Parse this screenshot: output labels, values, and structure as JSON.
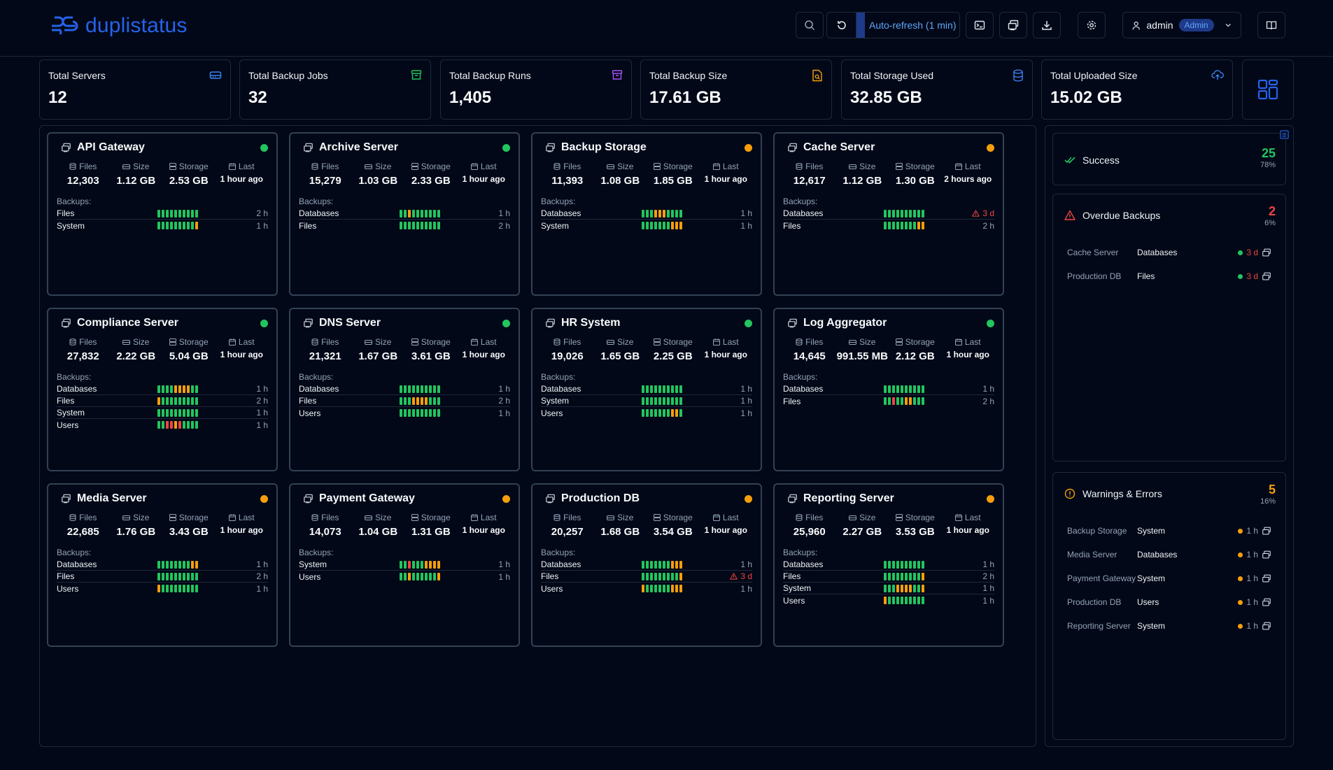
{
  "app": {
    "title": "duplistatus"
  },
  "header": {
    "auto_refresh_label": "Auto-refresh (1 min)",
    "user_name": "admin",
    "user_role": "Admin"
  },
  "stats": [
    {
      "label": "Total Servers",
      "value": "12",
      "icon": "server-icon",
      "color": "#3b82f6"
    },
    {
      "label": "Total Backup Jobs",
      "value": "32",
      "icon": "archive-icon",
      "color": "#22c55e"
    },
    {
      "label": "Total Backup Runs",
      "value": "1,405",
      "icon": "archive-icon",
      "color": "#a855f7"
    },
    {
      "label": "Total Backup Size",
      "value": "17.61 GB",
      "icon": "file-search-icon",
      "color": "#f59e0b"
    },
    {
      "label": "Total Storage Used",
      "value": "32.85 GB",
      "icon": "database-icon",
      "color": "#3b82f6"
    },
    {
      "label": "Total Uploaded Size",
      "value": "15.02 GB",
      "icon": "cloud-upload-icon",
      "color": "#3b82f6"
    }
  ],
  "labels": {
    "files": "Files",
    "size": "Size",
    "storage": "Storage",
    "last": "Last",
    "backups": "Backups:"
  },
  "colors": {
    "green": "#22c55e",
    "yellow": "#f59e0b",
    "red": "#ef4444",
    "accent": "#2563eb"
  },
  "servers": [
    {
      "name": "API Gateway",
      "status": "green",
      "files": "12,303",
      "size": "1.12 GB",
      "storage": "2.53 GB",
      "last": "1 hour ago",
      "backups": [
        {
          "name": "Files",
          "bars": "gggggggggg",
          "age": "2 h",
          "alert": false
        },
        {
          "name": "System",
          "bars": "gggggggggy",
          "age": "1 h",
          "alert": false
        }
      ]
    },
    {
      "name": "Archive Server",
      "status": "green",
      "files": "15,279",
      "size": "1.03 GB",
      "storage": "2.33 GB",
      "last": "1 hour ago",
      "backups": [
        {
          "name": "Databases",
          "bars": "ggyggggggg",
          "age": "1 h",
          "alert": false
        },
        {
          "name": "Files",
          "bars": "gggggggggg",
          "age": "2 h",
          "alert": false
        }
      ]
    },
    {
      "name": "Backup Storage",
      "status": "yellow",
      "files": "11,393",
      "size": "1.08 GB",
      "storage": "1.85 GB",
      "last": "1 hour ago",
      "backups": [
        {
          "name": "Databases",
          "bars": "gggyyygggg",
          "age": "1 h",
          "alert": false
        },
        {
          "name": "System",
          "bars": "gggggggyyy",
          "age": "1 h",
          "alert": false
        }
      ]
    },
    {
      "name": "Cache Server",
      "status": "yellow",
      "files": "12,617",
      "size": "1.12 GB",
      "storage": "1.30 GB",
      "last": "2 hours ago",
      "backups": [
        {
          "name": "Databases",
          "bars": "gggggggggg",
          "age": "3 d",
          "alert": true
        },
        {
          "name": "Files",
          "bars": "ggggggggyy",
          "age": "2 h",
          "alert": false
        }
      ]
    },
    {
      "name": "Compliance Server",
      "status": "green",
      "files": "27,832",
      "size": "2.22 GB",
      "storage": "5.04 GB",
      "last": "1 hour ago",
      "backups": [
        {
          "name": "Databases",
          "bars": "ggggyyyygg",
          "age": "1 h",
          "alert": false
        },
        {
          "name": "Files",
          "bars": "yggggggggg",
          "age": "2 h",
          "alert": false
        },
        {
          "name": "System",
          "bars": "gggggggggg",
          "age": "1 h",
          "alert": false
        },
        {
          "name": "Users",
          "bars": "ggrryrgggg",
          "age": "1 h",
          "alert": false
        }
      ]
    },
    {
      "name": "DNS Server",
      "status": "green",
      "files": "21,321",
      "size": "1.67 GB",
      "storage": "3.61 GB",
      "last": "1 hour ago",
      "backups": [
        {
          "name": "Databases",
          "bars": "gggggggggg",
          "age": "1 h",
          "alert": false
        },
        {
          "name": "Files",
          "bars": "gggyyyyggg",
          "age": "2 h",
          "alert": false
        },
        {
          "name": "Users",
          "bars": "gggggggggg",
          "age": "1 h",
          "alert": false
        }
      ]
    },
    {
      "name": "HR System",
      "status": "green",
      "files": "19,026",
      "size": "1.65 GB",
      "storage": "2.25 GB",
      "last": "1 hour ago",
      "backups": [
        {
          "name": "Databases",
          "bars": "gggggggggg",
          "age": "1 h",
          "alert": false
        },
        {
          "name": "System",
          "bars": "gggggggggg",
          "age": "1 h",
          "alert": false
        },
        {
          "name": "Users",
          "bars": "gggggggyyg",
          "age": "1 h",
          "alert": false
        }
      ]
    },
    {
      "name": "Log Aggregator",
      "status": "green",
      "files": "14,645",
      "size": "991.55 MB",
      "storage": "2.12 GB",
      "last": "1 hour ago",
      "backups": [
        {
          "name": "Databases",
          "bars": "gggggggggg",
          "age": "1 h",
          "alert": false
        },
        {
          "name": "Files",
          "bars": "ggrggyyggg",
          "age": "2 h",
          "alert": false
        }
      ]
    },
    {
      "name": "Media Server",
      "status": "yellow",
      "files": "22,685",
      "size": "1.76 GB",
      "storage": "3.43 GB",
      "last": "1 hour ago",
      "backups": [
        {
          "name": "Databases",
          "bars": "ggggggggyy",
          "age": "1 h",
          "alert": false
        },
        {
          "name": "Files",
          "bars": "gggggggggg",
          "age": "2 h",
          "alert": false
        },
        {
          "name": "Users",
          "bars": "yggggggggg",
          "age": "1 h",
          "alert": false
        }
      ]
    },
    {
      "name": "Payment Gateway",
      "status": "yellow",
      "files": "14,073",
      "size": "1.04 GB",
      "storage": "1.31 GB",
      "last": "1 hour ago",
      "backups": [
        {
          "name": "System",
          "bars": "ggrgggyyyy",
          "age": "1 h",
          "alert": false
        },
        {
          "name": "Users",
          "bars": "ggyggggggy",
          "age": "1 h",
          "alert": false
        }
      ]
    },
    {
      "name": "Production DB",
      "status": "yellow",
      "files": "20,257",
      "size": "1.68 GB",
      "storage": "3.54 GB",
      "last": "1 hour ago",
      "backups": [
        {
          "name": "Databases",
          "bars": "gggggggyyy",
          "age": "1 h",
          "alert": false
        },
        {
          "name": "Files",
          "bars": "gggggggggy",
          "age": "3 d",
          "alert": true
        },
        {
          "name": "Users",
          "bars": "yggggggyyy",
          "age": "1 h",
          "alert": false
        }
      ]
    },
    {
      "name": "Reporting Server",
      "status": "yellow",
      "files": "25,960",
      "size": "2.27 GB",
      "storage": "3.53 GB",
      "last": "1 hour ago",
      "backups": [
        {
          "name": "Databases",
          "bars": "gggggggggg",
          "age": "1 h",
          "alert": false
        },
        {
          "name": "Files",
          "bars": "gggggggggy",
          "age": "2 h",
          "alert": false
        },
        {
          "name": "System",
          "bars": "gggyyyyggy",
          "age": "1 h",
          "alert": false
        },
        {
          "name": "Users",
          "bars": "yggggggggg",
          "age": "1 h",
          "alert": false
        }
      ]
    }
  ],
  "side": {
    "success": {
      "label": "Success",
      "count": "25",
      "pct": "78%"
    },
    "overdue": {
      "label": "Overdue Backups",
      "count": "2",
      "pct": "6%",
      "items": [
        {
          "server": "Cache Server",
          "job": "Databases",
          "age": "3 d"
        },
        {
          "server": "Production DB",
          "job": "Files",
          "age": "3 d"
        }
      ]
    },
    "warnings": {
      "label": "Warnings & Errors",
      "count": "5",
      "pct": "16%",
      "items": [
        {
          "server": "Backup Storage",
          "job": "System",
          "age": "1 h"
        },
        {
          "server": "Media Server",
          "job": "Databases",
          "age": "1 h"
        },
        {
          "server": "Payment Gateway",
          "job": "System",
          "age": "1 h"
        },
        {
          "server": "Production DB",
          "job": "Users",
          "age": "1 h"
        },
        {
          "server": "Reporting Server",
          "job": "System",
          "age": "1 h"
        }
      ]
    }
  }
}
